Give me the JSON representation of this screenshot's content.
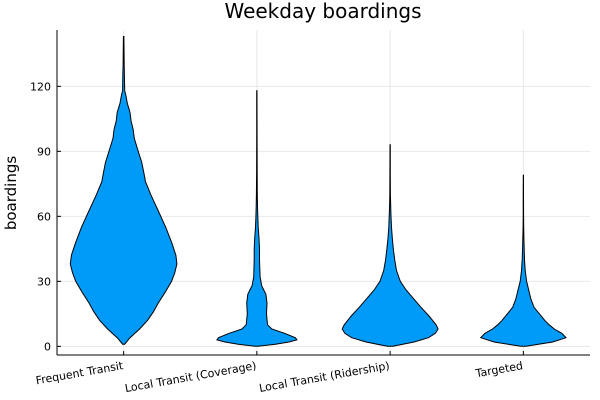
{
  "chart_data": {
    "type": "violin",
    "title": "Weekday boardings",
    "xlabel": "",
    "ylabel": "boardings",
    "ylim": [
      -4,
      146
    ],
    "yticks": [
      0,
      30,
      60,
      90,
      120
    ],
    "grid": true,
    "legend": "none",
    "fill_color": "#009af9",
    "categories": [
      "Frequent Transit",
      "Local Transit (Coverage)",
      "Local Transit (Ridership)",
      "Targeted"
    ],
    "series": [
      {
        "category": "Frequent Transit",
        "profile": [
          [
            1,
            0.02
          ],
          [
            4,
            0.12
          ],
          [
            8,
            0.3
          ],
          [
            12,
            0.45
          ],
          [
            16,
            0.56
          ],
          [
            20,
            0.65
          ],
          [
            25,
            0.78
          ],
          [
            30,
            0.9
          ],
          [
            34,
            0.96
          ],
          [
            38,
            1.0
          ],
          [
            42,
            0.98
          ],
          [
            48,
            0.9
          ],
          [
            55,
            0.79
          ],
          [
            62,
            0.66
          ],
          [
            70,
            0.51
          ],
          [
            76,
            0.41
          ],
          [
            80,
            0.38
          ],
          [
            85,
            0.34
          ],
          [
            88,
            0.3
          ],
          [
            92,
            0.25
          ],
          [
            96,
            0.2
          ],
          [
            100,
            0.18
          ],
          [
            104,
            0.14
          ],
          [
            108,
            0.12
          ],
          [
            112,
            0.07
          ],
          [
            116,
            0.04
          ],
          [
            118,
            0.02
          ],
          [
            125,
            0.015
          ],
          [
            130,
            0.01
          ],
          [
            143,
            0.005
          ]
        ]
      },
      {
        "category": "Local Transit (Coverage)",
        "profile": [
          [
            0,
            0.02
          ],
          [
            1,
            0.35
          ],
          [
            2,
            0.6
          ],
          [
            3,
            0.75
          ],
          [
            4,
            0.72
          ],
          [
            6,
            0.52
          ],
          [
            8,
            0.28
          ],
          [
            10,
            0.2
          ],
          [
            15,
            0.18
          ],
          [
            20,
            0.19
          ],
          [
            24,
            0.17
          ],
          [
            26,
            0.13
          ],
          [
            28,
            0.09
          ],
          [
            32,
            0.06
          ],
          [
            40,
            0.05
          ],
          [
            45,
            0.05
          ],
          [
            50,
            0.04
          ],
          [
            55,
            0.025
          ],
          [
            60,
            0.018
          ],
          [
            65,
            0.012
          ],
          [
            70,
            0.008
          ],
          [
            80,
            0.006
          ],
          [
            95,
            0.004
          ],
          [
            118,
            0.003
          ]
        ]
      },
      {
        "category": "Local Transit (Ridership)",
        "profile": [
          [
            0,
            0.05
          ],
          [
            2,
            0.45
          ],
          [
            4,
            0.72
          ],
          [
            6,
            0.85
          ],
          [
            8,
            0.9
          ],
          [
            10,
            0.86
          ],
          [
            14,
            0.73
          ],
          [
            18,
            0.58
          ],
          [
            22,
            0.44
          ],
          [
            26,
            0.3
          ],
          [
            30,
            0.19
          ],
          [
            35,
            0.12
          ],
          [
            40,
            0.085
          ],
          [
            45,
            0.06
          ],
          [
            50,
            0.04
          ],
          [
            55,
            0.025
          ],
          [
            60,
            0.017
          ],
          [
            65,
            0.01
          ],
          [
            70,
            0.006
          ],
          [
            80,
            0.004
          ],
          [
            93,
            0.003
          ]
        ]
      },
      {
        "category": "Targeted",
        "profile": [
          [
            0,
            0.05
          ],
          [
            2,
            0.55
          ],
          [
            4,
            0.8
          ],
          [
            6,
            0.72
          ],
          [
            8,
            0.58
          ],
          [
            10,
            0.48
          ],
          [
            12,
            0.4
          ],
          [
            15,
            0.3
          ],
          [
            18,
            0.2
          ],
          [
            22,
            0.14
          ],
          [
            26,
            0.1
          ],
          [
            30,
            0.06
          ],
          [
            35,
            0.035
          ],
          [
            40,
            0.022
          ],
          [
            45,
            0.015
          ],
          [
            50,
            0.01
          ],
          [
            55,
            0.006
          ],
          [
            60,
            0.004
          ],
          [
            70,
            0.003
          ],
          [
            79,
            0.002
          ]
        ]
      }
    ]
  }
}
